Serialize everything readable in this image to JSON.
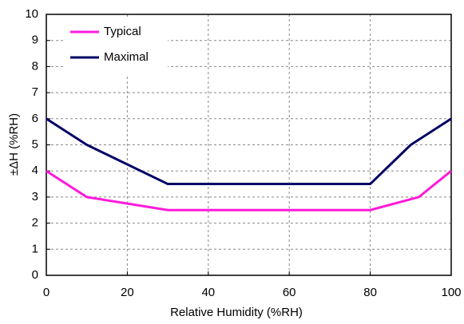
{
  "chart_data": {
    "type": "line",
    "x_label": "Relative Humidity (%RH)",
    "y_label": "±ΔH (%RH)",
    "series": [
      {
        "name": "Typical",
        "color": "#ff1ad9",
        "x": [
          0,
          10,
          30,
          80,
          92,
          100
        ],
        "values": [
          4,
          3,
          2.5,
          2.5,
          3,
          4
        ]
      },
      {
        "name": "Maximal",
        "color": "#000066",
        "x": [
          0,
          10,
          30,
          80,
          90,
          100
        ],
        "values": [
          6,
          5,
          3.5,
          3.5,
          5,
          6
        ]
      }
    ],
    "xlim": [
      0,
      100
    ],
    "xticks": [
      0,
      20,
      40,
      60,
      80,
      100
    ],
    "ylim": [
      0,
      10
    ],
    "yticks": [
      0,
      1,
      2,
      3,
      4,
      5,
      6,
      7,
      8,
      9,
      10
    ],
    "grid": true,
    "legend": "upper left"
  }
}
